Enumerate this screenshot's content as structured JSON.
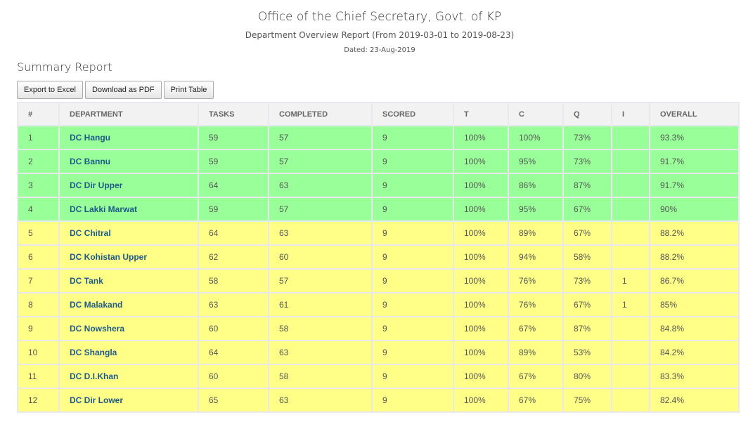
{
  "header": {
    "title": "Office of the Chief Secretary, Govt. of KP",
    "subtitle": "Department Overview Report (From 2019-03-01 to 2019-08-23)",
    "dated": "Dated: 23-Aug-2019"
  },
  "section_title": "Summary Report",
  "toolbar": {
    "export_excel": "Export to Excel",
    "download_pdf": "Download as PDF",
    "print": "Print Table"
  },
  "colors": {
    "green_row": "#99ff99",
    "yellow_row": "#ffff88"
  },
  "table": {
    "columns": [
      "#",
      "DEPARTMENT",
      "TASKS",
      "COMPLETED",
      "SCORED",
      "T",
      "C",
      "Q",
      "I",
      "OVERALL"
    ],
    "rows": [
      {
        "status": "green",
        "cells": [
          "1",
          "DC Hangu",
          "59",
          "57",
          "9",
          "100%",
          "100%",
          "73%",
          "",
          "93.3%"
        ]
      },
      {
        "status": "green",
        "cells": [
          "2",
          "DC Bannu",
          "59",
          "57",
          "9",
          "100%",
          "95%",
          "73%",
          "",
          "91.7%"
        ]
      },
      {
        "status": "green",
        "cells": [
          "3",
          "DC Dir Upper",
          "64",
          "63",
          "9",
          "100%",
          "86%",
          "87%",
          "",
          "91.7%"
        ]
      },
      {
        "status": "green",
        "cells": [
          "4",
          "DC Lakki Marwat",
          "59",
          "57",
          "9",
          "100%",
          "95%",
          "67%",
          "",
          "90%"
        ]
      },
      {
        "status": "yellow",
        "cells": [
          "5",
          "DC Chitral",
          "64",
          "63",
          "9",
          "100%",
          "89%",
          "67%",
          "",
          "88.2%"
        ]
      },
      {
        "status": "yellow",
        "cells": [
          "6",
          "DC Kohistan Upper",
          "62",
          "60",
          "9",
          "100%",
          "94%",
          "58%",
          "",
          "88.2%"
        ]
      },
      {
        "status": "yellow",
        "cells": [
          "7",
          "DC Tank",
          "58",
          "57",
          "9",
          "100%",
          "76%",
          "73%",
          "1",
          "86.7%"
        ]
      },
      {
        "status": "yellow",
        "cells": [
          "8",
          "DC Malakand",
          "63",
          "61",
          "9",
          "100%",
          "76%",
          "67%",
          "1",
          "85%"
        ]
      },
      {
        "status": "yellow",
        "cells": [
          "9",
          "DC Nowshera",
          "60",
          "58",
          "9",
          "100%",
          "67%",
          "87%",
          "",
          "84.8%"
        ]
      },
      {
        "status": "yellow",
        "cells": [
          "10",
          "DC Shangla",
          "64",
          "63",
          "9",
          "100%",
          "89%",
          "53%",
          "",
          "84.2%"
        ]
      },
      {
        "status": "yellow",
        "cells": [
          "11",
          "DC D.I.Khan",
          "60",
          "58",
          "9",
          "100%",
          "67%",
          "80%",
          "",
          "83.3%"
        ]
      },
      {
        "status": "yellow",
        "cells": [
          "12",
          "DC Dir Lower",
          "65",
          "63",
          "9",
          "100%",
          "67%",
          "75%",
          "",
          "82.4%"
        ]
      }
    ]
  }
}
